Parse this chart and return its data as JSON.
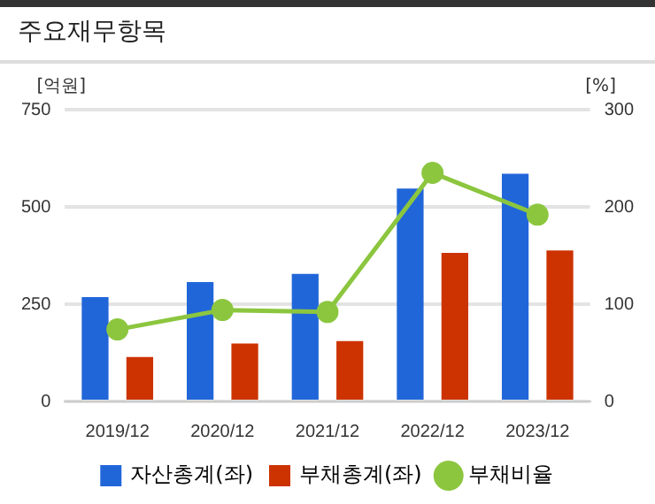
{
  "chart_data": {
    "type": "bar",
    "title": "주요재무항목",
    "ylabel": "[억원]",
    "y2label": "[%]",
    "categories": [
      "2019/12",
      "2020/12",
      "2021/12",
      "2022/12",
      "2023/12"
    ],
    "series": [
      {
        "name": "자산총계(좌)",
        "color": "#2166d9",
        "values": [
          268,
          307,
          328,
          547,
          585
        ]
      },
      {
        "name": "부채총계(좌)",
        "color": "#cc3300",
        "values": [
          114,
          149,
          155,
          382,
          388
        ]
      },
      {
        "name": "부채비율",
        "type": "line",
        "axis": "y2",
        "color": "#8cc63f",
        "values": [
          74,
          94,
          92,
          235,
          192
        ]
      }
    ],
    "ylim": [
      0,
      750
    ],
    "yticks": [
      0,
      250,
      500,
      750
    ],
    "y2lim": [
      0,
      300
    ],
    "y2ticks": [
      0,
      100,
      200,
      300
    ],
    "grid": "y",
    "legend": "bottom",
    "marker": "circle"
  }
}
